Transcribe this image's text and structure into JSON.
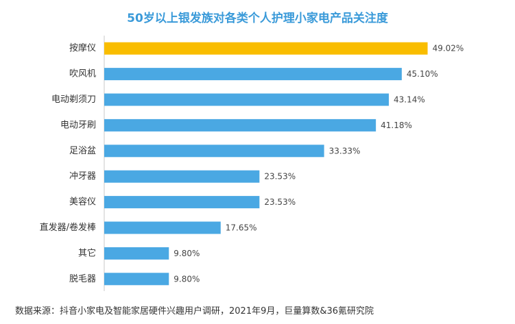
{
  "chart_data": {
    "type": "bar",
    "orientation": "horizontal",
    "title": "50岁以上银发族对各类个人护理小家电产品关注度",
    "categories": [
      "按摩仪",
      "吹风机",
      "电动剃须刀",
      "电动牙刷",
      "足浴盆",
      "冲牙器",
      "美容仪",
      "直发器/卷发棒",
      "其它",
      "脱毛器"
    ],
    "values": [
      49.02,
      45.1,
      43.14,
      41.18,
      33.33,
      23.53,
      23.53,
      17.65,
      9.8,
      9.8
    ],
    "value_labels": [
      "49.02%",
      "45.10%",
      "43.14%",
      "41.18%",
      "33.33%",
      "23.53%",
      "23.53%",
      "17.65%",
      "9.80%",
      "9.80%"
    ],
    "xlim": [
      0,
      50
    ],
    "grid": false,
    "colors": {
      "default": "#4aa8e3",
      "highlight": "#f9bd00"
    },
    "highlight_index": 0
  },
  "source": "数据来源：抖音小家电及智能家居硬件兴趣用户调研，2021年9月，巨量算数&36氪研究院"
}
